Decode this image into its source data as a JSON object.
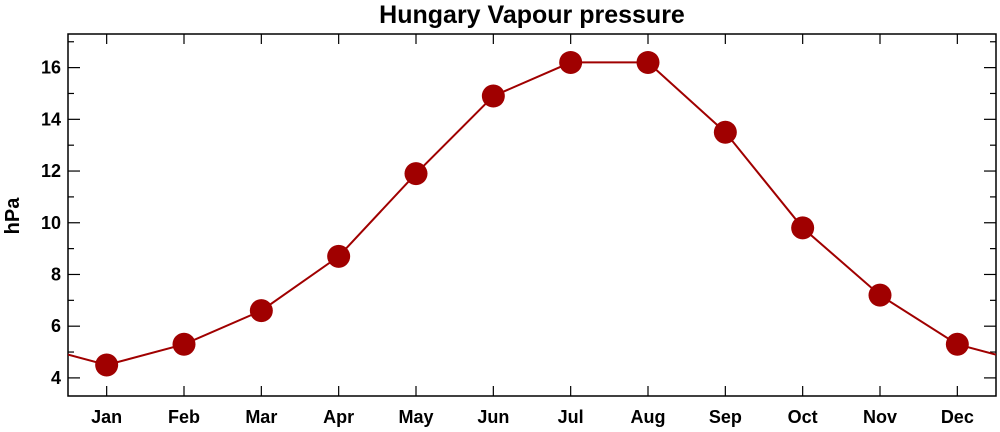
{
  "chart_data": {
    "type": "line",
    "title": "Hungary Vapour pressure",
    "xlabel": "",
    "ylabel": "hPa",
    "categories": [
      "Jan",
      "Feb",
      "Mar",
      "Apr",
      "May",
      "Jun",
      "Jul",
      "Aug",
      "Sep",
      "Oct",
      "Nov",
      "Dec"
    ],
    "series": [
      {
        "values": [
          4.5,
          5.3,
          6.6,
          8.7,
          11.9,
          14.9,
          16.2,
          16.2,
          13.5,
          9.8,
          7.2,
          5.3
        ]
      }
    ],
    "ylim": [
      3.3,
      17.3
    ],
    "yticks": [
      4,
      6,
      8,
      10,
      12,
      14,
      16
    ],
    "y_minor_step": 1,
    "line_color": "#a00000",
    "marker_color": "#a00000",
    "grid": false,
    "legend": "none"
  }
}
